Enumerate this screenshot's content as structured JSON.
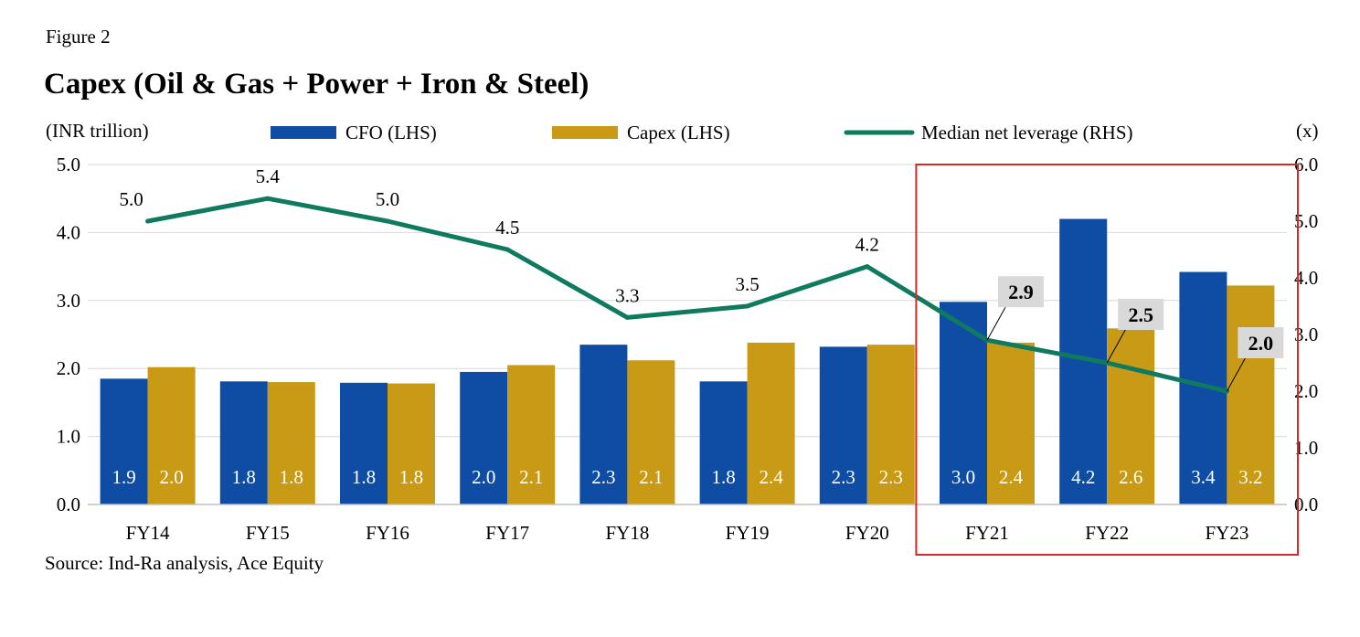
{
  "figure_label": "Figure 2",
  "title": "Capex (Oil & Gas + Power + Iron & Steel)",
  "source": "Source: Ind-Ra analysis, Ace Equity",
  "chart_data": {
    "type": "bar",
    "categories": [
      "FY14",
      "FY15",
      "FY16",
      "FY17",
      "FY18",
      "FY19",
      "FY20",
      "FY21",
      "FY22",
      "FY23"
    ],
    "left_axis": {
      "unit_label": "(INR trillion)",
      "min": 0,
      "max": 5,
      "step": 1,
      "tick_labels": [
        "0.0",
        "1.0",
        "2.0",
        "3.0",
        "4.0",
        "5.0"
      ]
    },
    "right_axis": {
      "unit_label": "(x)",
      "min": 0,
      "max": 6,
      "step": 1,
      "tick_labels": [
        "0.0",
        "1.0",
        "2.0",
        "3.0",
        "4.0",
        "5.0",
        "6.0"
      ]
    },
    "series": [
      {
        "name": "CFO (LHS)",
        "kind": "bar",
        "axis": "left",
        "color": "#0e4da3",
        "values": [
          1.85,
          1.81,
          1.79,
          1.95,
          2.35,
          1.81,
          2.32,
          2.98,
          4.2,
          3.42
        ],
        "labels": [
          "1.9",
          "1.8",
          "1.8",
          "2.0",
          "2.3",
          "1.8",
          "2.3",
          "3.0",
          "4.2",
          "3.4"
        ]
      },
      {
        "name": "Capex (LHS)",
        "kind": "bar",
        "axis": "left",
        "color": "#c99a16",
        "values": [
          2.02,
          1.8,
          1.78,
          2.05,
          2.12,
          2.38,
          2.35,
          2.38,
          2.59,
          3.22
        ],
        "labels": [
          "2.0",
          "1.8",
          "1.8",
          "2.1",
          "2.1",
          "2.4",
          "2.3",
          "2.4",
          "2.6",
          "3.2"
        ]
      },
      {
        "name": "Median net leverage (RHS)",
        "kind": "line",
        "axis": "right",
        "color": "#0f7a5f",
        "values": [
          5.0,
          5.4,
          5.0,
          4.5,
          3.3,
          3.5,
          4.2,
          2.9,
          2.5,
          2.0
        ],
        "labels": [
          "5.0",
          "5.4",
          "5.0",
          "4.5",
          "3.3",
          "3.5",
          "4.2",
          "2.9",
          "2.5",
          "2.0"
        ],
        "boxed_label_categories": [
          "FY21",
          "FY22",
          "FY23"
        ]
      }
    ],
    "highlight": {
      "categories": [
        "FY21",
        "FY22",
        "FY23"
      ],
      "color": "#d42a2a"
    },
    "gridlines": true,
    "legend_position": "top"
  }
}
